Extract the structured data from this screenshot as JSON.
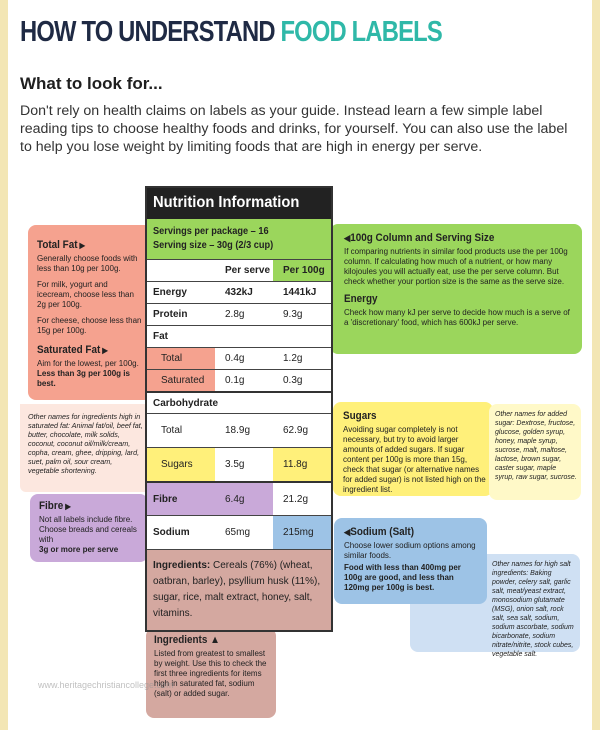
{
  "header": {
    "title_part1": "HOW TO UNDERSTAND ",
    "title_part2": "FOOD LABELS",
    "subhead": "What to look for...",
    "intro": "Don't rely on health claims on labels as your guide. Instead learn a few simple label reading tips to choose healthy foods and drinks, for yourself. You can also use the label to help you lose weight by limiting foods that are high in energy per serve."
  },
  "panel": {
    "title": "Nutrition Information",
    "servings_per_package": "Servings per package – 16",
    "serving_size": "Serving size – 30g (2/3 cup)",
    "col_per_serve": "Per serve",
    "col_per_100g": "Per 100g",
    "rows": [
      {
        "label": "Energy",
        "serve": "432kJ",
        "per100": "1441kJ"
      },
      {
        "label": "Protein",
        "serve": "2.8g",
        "per100": "9.3g"
      },
      {
        "label": "Fat",
        "serve": "",
        "per100": ""
      },
      {
        "label": "Total",
        "serve": "0.4g",
        "per100": "1.2g"
      },
      {
        "label": "Saturated",
        "serve": "0.1g",
        "per100": "0.3g"
      },
      {
        "label": "Carbohydrate",
        "serve": "",
        "per100": ""
      },
      {
        "label": "Total",
        "serve": "18.9g",
        "per100": "62.9g"
      },
      {
        "label": "Sugars",
        "serve": "3.5g",
        "per100": "11.8g"
      },
      {
        "label": "Fibre",
        "serve": "6.4g",
        "per100": "21.2g"
      },
      {
        "label": "Sodium",
        "serve": "65mg",
        "per100": "215mg"
      }
    ],
    "ingredients_label": "Ingredients:",
    "ingredients_text": " Cereals (76%) (wheat, oatbran, barley), psyllium husk (11%), sugar, rice, malt extract, honey, salt, vitamins."
  },
  "callouts": {
    "fat": {
      "title": "Total Fat",
      "p1": "Generally choose foods with less than 10g per 100g.",
      "p2": "For milk, yogurt and icecream, choose less than 2g per 100g.",
      "p3": "For cheese, choose less than 15g per 100g.",
      "sat_title": "Saturated Fat",
      "sat_p1": "Aim for the lowest, per 100g.",
      "sat_p2": "Less than 3g per 100g is best."
    },
    "other_fat": "Other names for ingredients high in saturated fat: Animal fat/oil, beef fat, butter, chocolate, milk solids, coconut, coconut oil/milk/cream, copha, cream, ghee, dripping, lard, suet, palm oil, sour cream, vegetable shortening.",
    "fibre": {
      "title": "Fibre",
      "p1": "Not all labels include fibre. Choose breads and cereals with",
      "p2": "3g or more per serve"
    },
    "column": {
      "title": "100g Column and Serving Size",
      "p1": "If comparing nutrients in similar food products use the per 100g column. If calculating how much of a nutrient, or how many kilojoules you will actually eat, use the per serve column. But check whether your portion size is the same as the serve size.",
      "energy_title": "Energy",
      "energy_p": "Check how many kJ per serve to decide how much is a serve of a 'discretionary' food, which has 600kJ per serve."
    },
    "sugars": {
      "title": "Sugars",
      "p1": "Avoiding sugar completely is not necessary, but try to avoid larger amounts of added sugars. If sugar content per 100g is more than 15g, check that sugar (or alternative names for added sugar) is not listed high on the ingredient list."
    },
    "other_sugar": "Other names for added sugar: Dextrose, fructose, glucose, golden syrup, honey, maple syrup, sucrose, malt, maltose, lactose, brown sugar, caster sugar, maple syrup, raw sugar, sucrose.",
    "sodium": {
      "title": "Sodium (Salt)",
      "p1": "Choose lower sodium options among similar foods.",
      "p2": "Food with less than 400mg per 100g are good, and less than 120mg per 100g is best."
    },
    "other_salt": "Other names for high salt ingredients: Baking powder, celery salt, garlic salt, meat/yeast extract, monosodium glutamate (MSG), onion salt, rock salt, sea salt, sodium, sodium ascorbate, sodium bicarbonate, sodium nitrate/nitrite, stock cubes, vegetable salt.",
    "ingredients": {
      "title": "Ingredients",
      "p1": "Listed from greatest to smallest by weight. Use this to check the first three ingredients for items high in saturated fat, sodium (salt) or added sugar."
    }
  },
  "watermark": "www.heritagechristiancollege.com"
}
